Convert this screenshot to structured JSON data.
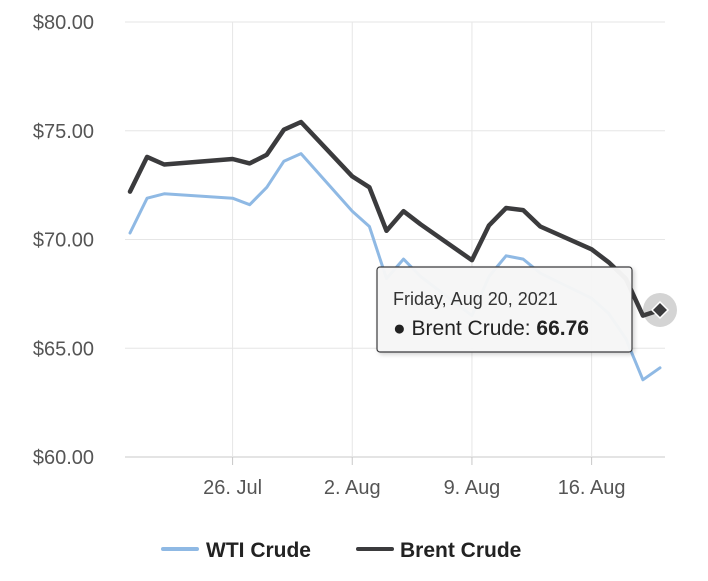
{
  "chart_data": {
    "type": "line",
    "x_axis_ticks": [
      "26. Jul",
      "2. Aug",
      "9. Aug",
      "16. Aug"
    ],
    "y_axis_ticks": [
      "$60.00",
      "$65.00",
      "$70.00",
      "$75.00",
      "$80.00"
    ],
    "ylim": [
      60,
      80
    ],
    "xlim": [
      "2021-07-20",
      "2021-08-20"
    ],
    "grid": true,
    "legend_position": "bottom-center",
    "series": [
      {
        "name": "WTI Crude",
        "color": "#8fb9e4",
        "points": [
          {
            "date": "2021-07-20",
            "value": 70.3
          },
          {
            "date": "2021-07-21",
            "value": 71.9
          },
          {
            "date": "2021-07-22",
            "value": 72.1
          },
          {
            "date": "2021-07-26",
            "value": 71.9
          },
          {
            "date": "2021-07-27",
            "value": 71.6
          },
          {
            "date": "2021-07-28",
            "value": 72.4
          },
          {
            "date": "2021-07-29",
            "value": 73.6
          },
          {
            "date": "2021-07-30",
            "value": 73.95
          },
          {
            "date": "2021-08-02",
            "value": 71.3
          },
          {
            "date": "2021-08-03",
            "value": 70.6
          },
          {
            "date": "2021-08-04",
            "value": 68.2
          },
          {
            "date": "2021-08-05",
            "value": 69.1
          },
          {
            "date": "2021-08-06",
            "value": 68.3
          },
          {
            "date": "2021-08-09",
            "value": 66.5
          },
          {
            "date": "2021-08-10",
            "value": 68.3
          },
          {
            "date": "2021-08-11",
            "value": 69.25
          },
          {
            "date": "2021-08-12",
            "value": 69.1
          },
          {
            "date": "2021-08-13",
            "value": 68.45
          },
          {
            "date": "2021-08-16",
            "value": 67.3
          },
          {
            "date": "2021-08-17",
            "value": 66.6
          },
          {
            "date": "2021-08-18",
            "value": 65.45
          },
          {
            "date": "2021-08-19",
            "value": 63.55
          },
          {
            "date": "2021-08-20",
            "value": 64.1
          }
        ]
      },
      {
        "name": "Brent Crude",
        "color": "#3b3b3d",
        "points": [
          {
            "date": "2021-07-20",
            "value": 72.2
          },
          {
            "date": "2021-07-21",
            "value": 73.8
          },
          {
            "date": "2021-07-22",
            "value": 73.45
          },
          {
            "date": "2021-07-26",
            "value": 73.7
          },
          {
            "date": "2021-07-27",
            "value": 73.5
          },
          {
            "date": "2021-07-28",
            "value": 73.9
          },
          {
            "date": "2021-07-29",
            "value": 75.05
          },
          {
            "date": "2021-07-30",
            "value": 75.4
          },
          {
            "date": "2021-08-02",
            "value": 72.9
          },
          {
            "date": "2021-08-03",
            "value": 72.4
          },
          {
            "date": "2021-08-04",
            "value": 70.4
          },
          {
            "date": "2021-08-05",
            "value": 71.3
          },
          {
            "date": "2021-08-06",
            "value": 70.7
          },
          {
            "date": "2021-08-09",
            "value": 69.05
          },
          {
            "date": "2021-08-10",
            "value": 70.65
          },
          {
            "date": "2021-08-11",
            "value": 71.45
          },
          {
            "date": "2021-08-12",
            "value": 71.35
          },
          {
            "date": "2021-08-13",
            "value": 70.6
          },
          {
            "date": "2021-08-16",
            "value": 69.55
          },
          {
            "date": "2021-08-17",
            "value": 68.95
          },
          {
            "date": "2021-08-18",
            "value": 68.2
          },
          {
            "date": "2021-08-19",
            "value": 66.5
          },
          {
            "date": "2021-08-20",
            "value": 66.76
          }
        ]
      }
    ],
    "tooltip": {
      "series": "Brent Crude",
      "date": "2021-08-20",
      "date_label": "Friday, Aug 20, 2021",
      "series_label": "● Brent Crude: ",
      "value_label": "66.76"
    }
  }
}
